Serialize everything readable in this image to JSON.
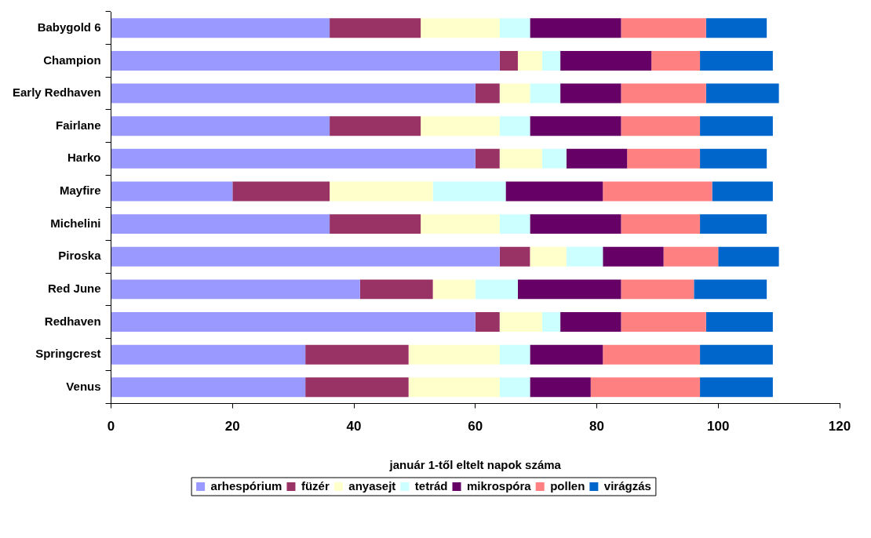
{
  "chart_data": {
    "type": "bar",
    "orientation": "horizontal",
    "stacked": true,
    "xlabel": "január 1-től eltelt napok száma",
    "categories": [
      "Babygold 6",
      "Champion",
      "Early Redhaven",
      "Fairlane",
      "Harko",
      "Mayfire",
      "Michelini",
      "Piroska",
      "Red June",
      "Redhaven",
      "Springcrest",
      "Venus"
    ],
    "series": [
      {
        "name": "arhespórium",
        "color": "#9999ff",
        "values": [
          36,
          64,
          60,
          36,
          60,
          20,
          36,
          64,
          41,
          60,
          32,
          32
        ]
      },
      {
        "name": "füzér",
        "color": "#993366",
        "values": [
          15,
          3,
          4,
          15,
          4,
          16,
          15,
          5,
          12,
          4,
          17,
          17
        ]
      },
      {
        "name": "anyasejt",
        "color": "#ffffcc",
        "values": [
          13,
          4,
          5,
          13,
          7,
          17,
          13,
          6,
          7,
          7,
          15,
          15
        ]
      },
      {
        "name": "tetrád",
        "color": "#ccffff",
        "values": [
          5,
          3,
          5,
          5,
          4,
          12,
          5,
          6,
          7,
          3,
          5,
          5
        ]
      },
      {
        "name": "mikrospóra",
        "color": "#660066",
        "values": [
          15,
          15,
          10,
          15,
          10,
          16,
          15,
          10,
          17,
          10,
          12,
          10
        ]
      },
      {
        "name": "pollen",
        "color": "#ff8080",
        "values": [
          14,
          8,
          14,
          13,
          12,
          18,
          13,
          9,
          12,
          14,
          16,
          18
        ]
      },
      {
        "name": "virágzás",
        "color": "#0066cc",
        "values": [
          10,
          12,
          12,
          12,
          11,
          10,
          11,
          10,
          12,
          11,
          12,
          12
        ]
      }
    ],
    "xlim": [
      0,
      120
    ],
    "xticks": [
      0,
      20,
      40,
      60,
      80,
      100,
      120
    ],
    "grid": false,
    "legend": "bottom"
  }
}
